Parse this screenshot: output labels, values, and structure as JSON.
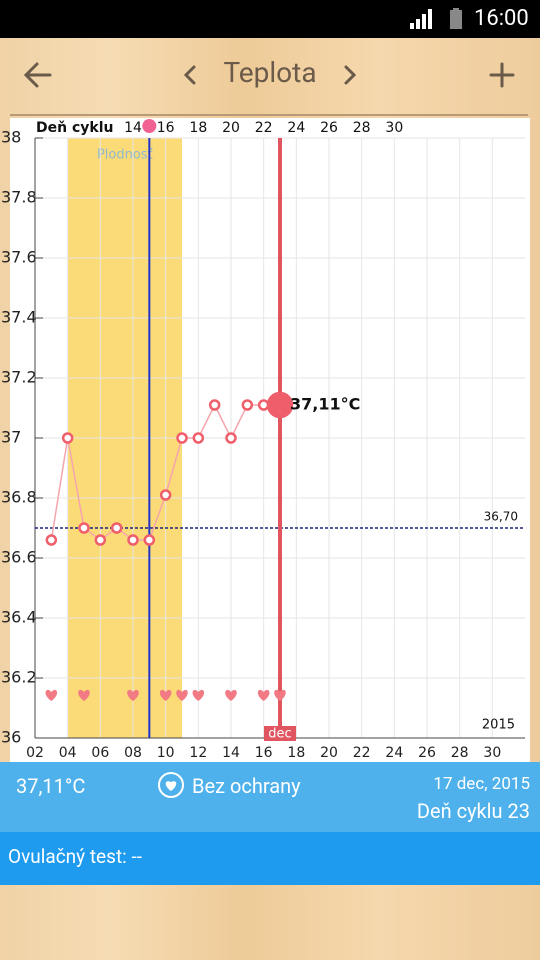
{
  "status_bar": {
    "time": "16:00"
  },
  "toolbar": {
    "title": "Teplota"
  },
  "chart_data": {
    "type": "line",
    "cycle_axis_label": "Deň cyklu",
    "fertile_label": "Plodnosť",
    "year_label": "2015",
    "selected_month_label": "dec",
    "xlim": [
      2,
      32
    ],
    "xticks": [
      {
        "value": 2,
        "label": "02"
      },
      {
        "value": 4,
        "label": "04"
      },
      {
        "value": 6,
        "label": "06"
      },
      {
        "value": 8,
        "label": "08"
      },
      10,
      12,
      14,
      16,
      18,
      20,
      22,
      24,
      26,
      28,
      30
    ],
    "x2lim": [
      8,
      38
    ],
    "x2ticks": [
      14,
      16,
      18,
      20,
      22,
      24,
      26,
      28,
      30
    ],
    "ylim": [
      36,
      38
    ],
    "yticks": [
      36,
      36.2,
      36.4,
      36.6,
      36.8,
      37,
      37.2,
      37.4,
      37.6,
      37.8,
      38
    ],
    "grid": true,
    "series": [
      {
        "name": "Teplota",
        "color": "#ef5f6b",
        "x": [
          3,
          4,
          5,
          6,
          7,
          8,
          9,
          10,
          11,
          12,
          13,
          14,
          15,
          16,
          17
        ],
        "values": [
          36.66,
          37,
          36.7,
          36.66,
          36.7,
          36.66,
          36.66,
          36.81,
          37,
          37,
          37.11,
          37,
          37.11,
          37.11,
          37.11
        ],
        "value_labels": [
          null,
          null,
          null,
          null,
          null,
          null,
          null,
          null,
          null,
          null,
          null,
          null,
          null,
          null,
          "37,11°C"
        ]
      }
    ],
    "fertile_window": [
      4,
      11
    ],
    "ovulation_day": 9,
    "selected_day": 17,
    "coverline": {
      "value": 36.7,
      "label": "36,70"
    },
    "intercourse_days": [
      3,
      5,
      8,
      10,
      11,
      12,
      14,
      16,
      17
    ]
  },
  "summary": {
    "temperature": "37,11°C",
    "protection": "Bez ochrany",
    "date": "17 dec, 2015",
    "cycle_day": "Deň cyklu 23"
  },
  "ovulation_test": {
    "label": "Ovulačný test: --"
  }
}
